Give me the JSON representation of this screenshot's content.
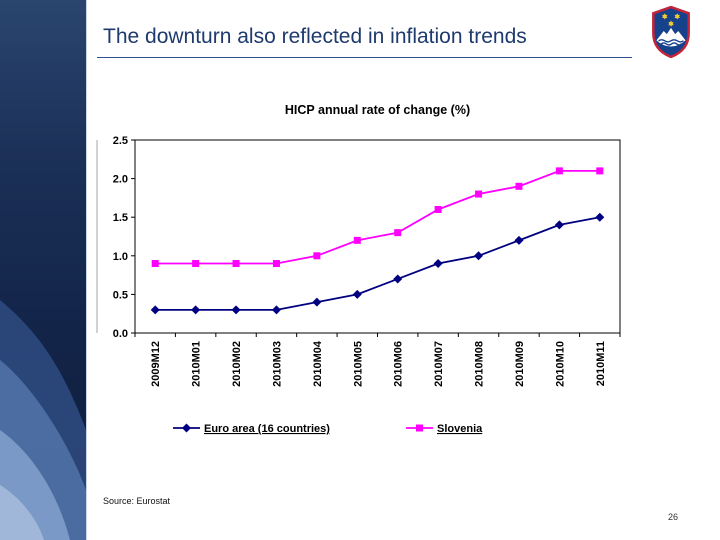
{
  "slide": {
    "title": "The downturn also reflected in inflation trends",
    "source_note": "Source: Eurostat",
    "page_number": "26"
  },
  "logo": {
    "name": "slovenia-coat-of-arms"
  },
  "colors": {
    "title_text": "#1f3a6e",
    "title_rule": "#31508e",
    "sidebar_navy": "#13254a",
    "euro_area_series": "#000080",
    "slovenia_series": "#FF00FF"
  },
  "chart_data": {
    "type": "line",
    "title": "HICP annual rate of change (%)",
    "categories": [
      "2009M12",
      "2010M01",
      "2010M02",
      "2010M03",
      "2010M04",
      "2010M05",
      "2010M06",
      "2010M07",
      "2010M08",
      "2010M09",
      "2010M10",
      "2010M11"
    ],
    "series": [
      {
        "name": "Euro area (16 countries)",
        "color": "#000080",
        "marker": "diamond",
        "values": [
          0.3,
          0.3,
          0.3,
          0.3,
          0.4,
          0.5,
          0.7,
          0.9,
          1.0,
          1.2,
          1.4,
          1.5
        ]
      },
      {
        "name": "Slovenia",
        "color": "#FF00FF",
        "marker": "square",
        "values": [
          0.9,
          0.9,
          0.9,
          0.9,
          1.0,
          1.2,
          1.3,
          1.6,
          1.8,
          1.9,
          2.1,
          2.1
        ]
      }
    ],
    "xlabel": "",
    "ylabel": "",
    "ylim": [
      0,
      2.5
    ],
    "ytick_step": 0.5,
    "ytick_labels": [
      "0.0",
      "0.5",
      "1.0",
      "1.5",
      "2.0",
      "2.5"
    ],
    "grid": false,
    "plot_border": true,
    "legend_position": "bottom",
    "x_tick_label_rotation": -90
  }
}
